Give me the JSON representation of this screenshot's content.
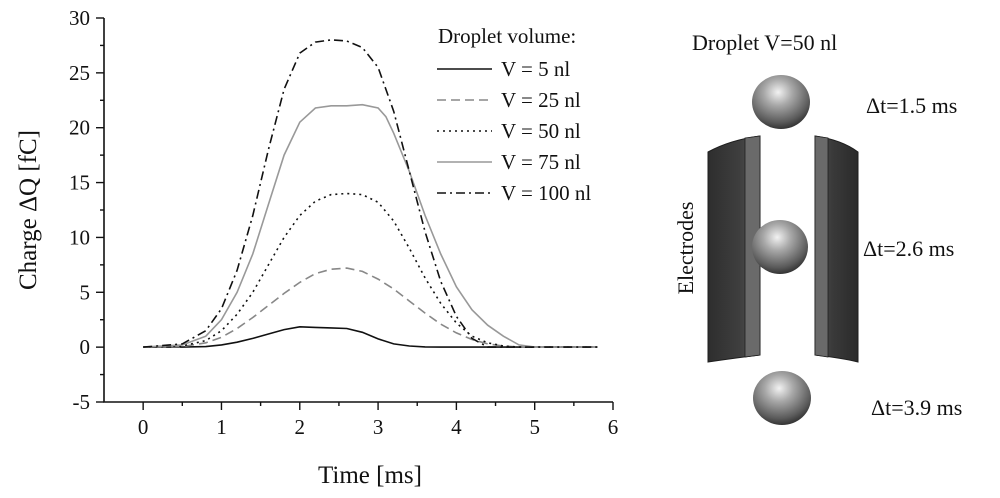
{
  "chart_data": {
    "type": "line",
    "xlabel": "Time [ms]",
    "ylabel": "Charge ΔQ [fC]",
    "xlim": [
      -0.5,
      6
    ],
    "ylim": [
      -5,
      30
    ],
    "xticks": [
      0,
      1,
      2,
      3,
      4,
      5,
      6
    ],
    "yticks": [
      -5,
      0,
      5,
      10,
      15,
      20,
      25,
      30
    ],
    "grid": false,
    "legend_title": "Droplet volume:",
    "legend_position": "top-right",
    "series": [
      {
        "name": "V = 5 nl",
        "style": "solid",
        "color": "#111111",
        "points": [
          [
            0,
            0
          ],
          [
            0.5,
            0
          ],
          [
            0.8,
            0.05
          ],
          [
            1.0,
            0.2
          ],
          [
            1.2,
            0.45
          ],
          [
            1.4,
            0.8
          ],
          [
            1.6,
            1.2
          ],
          [
            1.8,
            1.6
          ],
          [
            2.0,
            1.85
          ],
          [
            2.2,
            1.8
          ],
          [
            2.4,
            1.75
          ],
          [
            2.6,
            1.7
          ],
          [
            2.8,
            1.35
          ],
          [
            3.0,
            0.75
          ],
          [
            3.2,
            0.3
          ],
          [
            3.4,
            0.1
          ],
          [
            3.6,
            0.02
          ],
          [
            3.8,
            0
          ],
          [
            5.8,
            0
          ]
        ]
      },
      {
        "name": "V = 25 nl",
        "style": "dashed",
        "color": "#888888",
        "points": [
          [
            0,
            0
          ],
          [
            0.5,
            0.05
          ],
          [
            0.8,
            0.4
          ],
          [
            1.0,
            0.9
          ],
          [
            1.2,
            1.7
          ],
          [
            1.4,
            2.7
          ],
          [
            1.6,
            3.8
          ],
          [
            1.8,
            4.9
          ],
          [
            2.0,
            5.9
          ],
          [
            2.2,
            6.7
          ],
          [
            2.4,
            7.1
          ],
          [
            2.6,
            7.2
          ],
          [
            2.8,
            6.9
          ],
          [
            3.0,
            6.2
          ],
          [
            3.2,
            5.3
          ],
          [
            3.4,
            4.2
          ],
          [
            3.6,
            3.1
          ],
          [
            3.8,
            2.1
          ],
          [
            4.0,
            1.3
          ],
          [
            4.2,
            0.7
          ],
          [
            4.4,
            0.3
          ],
          [
            4.6,
            0.1
          ],
          [
            4.8,
            0
          ],
          [
            5.8,
            0
          ]
        ]
      },
      {
        "name": "V = 50 nl",
        "style": "dotted",
        "color": "#111111",
        "points": [
          [
            0,
            0
          ],
          [
            0.5,
            0.1
          ],
          [
            0.8,
            0.6
          ],
          [
            1.0,
            1.5
          ],
          [
            1.2,
            3.0
          ],
          [
            1.4,
            5.0
          ],
          [
            1.6,
            7.5
          ],
          [
            1.8,
            10.0
          ],
          [
            2.0,
            12.0
          ],
          [
            2.2,
            13.3
          ],
          [
            2.4,
            13.9
          ],
          [
            2.6,
            14.0
          ],
          [
            2.8,
            13.9
          ],
          [
            3.0,
            13.2
          ],
          [
            3.2,
            11.5
          ],
          [
            3.4,
            9.0
          ],
          [
            3.6,
            6.3
          ],
          [
            3.8,
            4.0
          ],
          [
            4.0,
            2.2
          ],
          [
            4.2,
            1.0
          ],
          [
            4.4,
            0.4
          ],
          [
            4.6,
            0.1
          ],
          [
            4.8,
            0
          ],
          [
            5.8,
            0
          ]
        ]
      },
      {
        "name": "V = 75 nl",
        "style": "solid",
        "color": "#999999",
        "points": [
          [
            0,
            0
          ],
          [
            0.5,
            0.2
          ],
          [
            0.8,
            1.0
          ],
          [
            1.0,
            2.5
          ],
          [
            1.2,
            5.0
          ],
          [
            1.4,
            8.5
          ],
          [
            1.6,
            13.0
          ],
          [
            1.8,
            17.5
          ],
          [
            2.0,
            20.5
          ],
          [
            2.2,
            21.8
          ],
          [
            2.4,
            22.0
          ],
          [
            2.6,
            22.0
          ],
          [
            2.8,
            22.1
          ],
          [
            3.0,
            21.8
          ],
          [
            3.1,
            21.0
          ],
          [
            3.2,
            19.5
          ],
          [
            3.4,
            16.0
          ],
          [
            3.6,
            12.0
          ],
          [
            3.8,
            8.5
          ],
          [
            4.0,
            5.5
          ],
          [
            4.2,
            3.4
          ],
          [
            4.4,
            2.0
          ],
          [
            4.6,
            1.0
          ],
          [
            4.8,
            0.2
          ],
          [
            5.0,
            0
          ],
          [
            5.8,
            0
          ]
        ]
      },
      {
        "name": "V = 100 nl",
        "style": "dashdot",
        "color": "#111111",
        "points": [
          [
            0,
            0
          ],
          [
            0.5,
            0.3
          ],
          [
            0.8,
            1.5
          ],
          [
            1.0,
            3.5
          ],
          [
            1.2,
            7.0
          ],
          [
            1.4,
            12.0
          ],
          [
            1.6,
            18.0
          ],
          [
            1.8,
            23.5
          ],
          [
            2.0,
            26.8
          ],
          [
            2.2,
            27.8
          ],
          [
            2.4,
            28.0
          ],
          [
            2.6,
            27.9
          ],
          [
            2.8,
            27.3
          ],
          [
            3.0,
            25.5
          ],
          [
            3.2,
            21.5
          ],
          [
            3.4,
            16.0
          ],
          [
            3.6,
            10.5
          ],
          [
            3.8,
            6.0
          ],
          [
            4.0,
            2.8
          ],
          [
            4.2,
            0.8
          ],
          [
            4.4,
            0
          ],
          [
            5.8,
            0
          ]
        ]
      }
    ]
  },
  "diagram": {
    "title": "Droplet V=50 nl",
    "electrodes_label": "Electrodes",
    "times": [
      "Δt=1.5 ms",
      "Δt=2.6 ms",
      "Δt=3.9 ms"
    ]
  }
}
